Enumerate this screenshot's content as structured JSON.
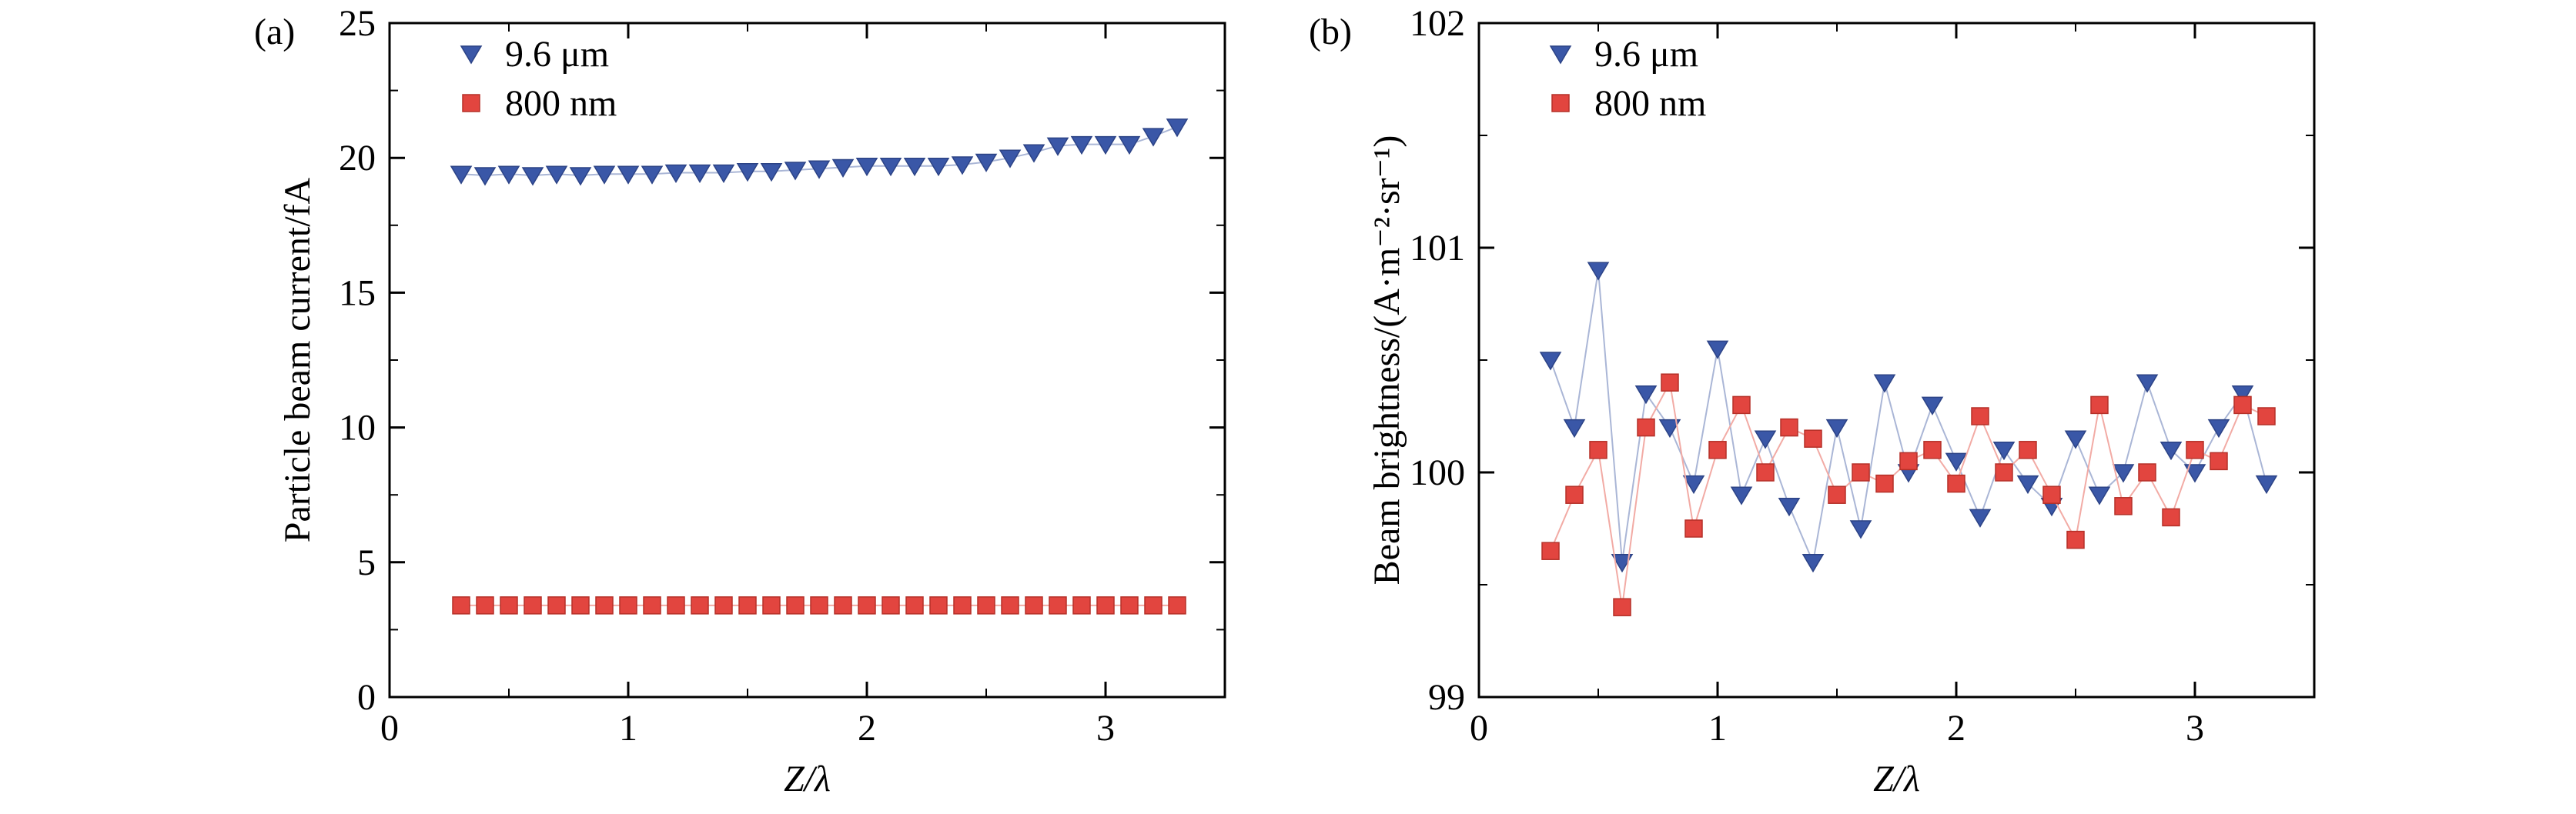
{
  "figure": {
    "panel_labels": [
      "(a)",
      "(b)"
    ]
  },
  "colors": {
    "blue": "#3a57a7",
    "blue_edge": "#2c4386",
    "blue_line": "#aab6d6",
    "red": "#e2453f",
    "red_edge": "#b53028",
    "red_line": "#f2aba5",
    "axis": "#000000"
  },
  "chart_data": [
    {
      "type": "scatter",
      "panel": "(a)",
      "title": "",
      "xlabel": "Z/λ",
      "ylabel": "Particle beam current/fA",
      "xlim": [
        0,
        3.5
      ],
      "ylim": [
        0,
        25
      ],
      "xticks": [
        0,
        1,
        2,
        3
      ],
      "yticks": [
        0,
        5,
        10,
        15,
        20,
        25
      ],
      "grid": false,
      "legend_position": "upper-left",
      "x": [
        0.3,
        0.4,
        0.5,
        0.6,
        0.7,
        0.8,
        0.9,
        1.0,
        1.1,
        1.2,
        1.3,
        1.4,
        1.5,
        1.6,
        1.7,
        1.8,
        1.9,
        2.0,
        2.1,
        2.2,
        2.3,
        2.4,
        2.5,
        2.6,
        2.7,
        2.8,
        2.9,
        3.0,
        3.1,
        3.2,
        3.3
      ],
      "series": [
        {
          "name": "9.6 μm",
          "marker": "triangle-down",
          "color_key": "blue",
          "values": [
            19.4,
            19.35,
            19.4,
            19.35,
            19.4,
            19.35,
            19.4,
            19.4,
            19.4,
            19.45,
            19.45,
            19.45,
            19.5,
            19.5,
            19.55,
            19.6,
            19.65,
            19.7,
            19.7,
            19.7,
            19.7,
            19.75,
            19.85,
            20.0,
            20.2,
            20.45,
            20.5,
            20.5,
            20.5,
            20.8,
            21.15
          ]
        },
        {
          "name": "800 nm",
          "marker": "square",
          "color_key": "red",
          "values": [
            3.4,
            3.4,
            3.4,
            3.4,
            3.4,
            3.4,
            3.4,
            3.4,
            3.4,
            3.4,
            3.4,
            3.4,
            3.4,
            3.4,
            3.4,
            3.4,
            3.4,
            3.4,
            3.4,
            3.4,
            3.4,
            3.4,
            3.4,
            3.4,
            3.4,
            3.4,
            3.4,
            3.4,
            3.4,
            3.4,
            3.4
          ]
        }
      ]
    },
    {
      "type": "scatter",
      "panel": "(b)",
      "title": "",
      "xlabel": "Z/λ",
      "ylabel": "Beam brightness/(A·m⁻²·sr⁻¹)",
      "xlim": [
        0,
        3.5
      ],
      "ylim": [
        99,
        102
      ],
      "xticks": [
        0,
        1,
        2,
        3
      ],
      "yticks": [
        99,
        100,
        101,
        102
      ],
      "grid": false,
      "legend_position": "upper-left",
      "x": [
        0.3,
        0.4,
        0.5,
        0.6,
        0.7,
        0.8,
        0.9,
        1.0,
        1.1,
        1.2,
        1.3,
        1.4,
        1.5,
        1.6,
        1.7,
        1.8,
        1.9,
        2.0,
        2.1,
        2.2,
        2.3,
        2.4,
        2.5,
        2.6,
        2.7,
        2.8,
        2.9,
        3.0,
        3.1,
        3.2,
        3.3
      ],
      "series": [
        {
          "name": "9.6 μm",
          "marker": "triangle-down",
          "color_key": "blue",
          "values": [
            100.5,
            100.2,
            100.9,
            99.6,
            100.35,
            100.2,
            99.95,
            100.55,
            99.9,
            100.15,
            99.85,
            99.6,
            100.2,
            99.75,
            100.4,
            100.0,
            100.3,
            100.05,
            99.8,
            100.1,
            99.95,
            99.85,
            100.15,
            99.9,
            100.0,
            100.4,
            100.1,
            100.0,
            100.2,
            100.35,
            99.95
          ]
        },
        {
          "name": "800 nm",
          "marker": "square",
          "color_key": "red",
          "values": [
            99.65,
            99.9,
            100.1,
            99.4,
            100.2,
            100.4,
            99.75,
            100.1,
            100.3,
            100.0,
            100.2,
            100.15,
            99.9,
            100.0,
            99.95,
            100.05,
            100.1,
            99.95,
            100.25,
            100.0,
            100.1,
            99.9,
            99.7,
            100.3,
            99.85,
            100.0,
            99.8,
            100.1,
            100.05,
            100.3,
            100.25
          ]
        }
      ]
    }
  ]
}
